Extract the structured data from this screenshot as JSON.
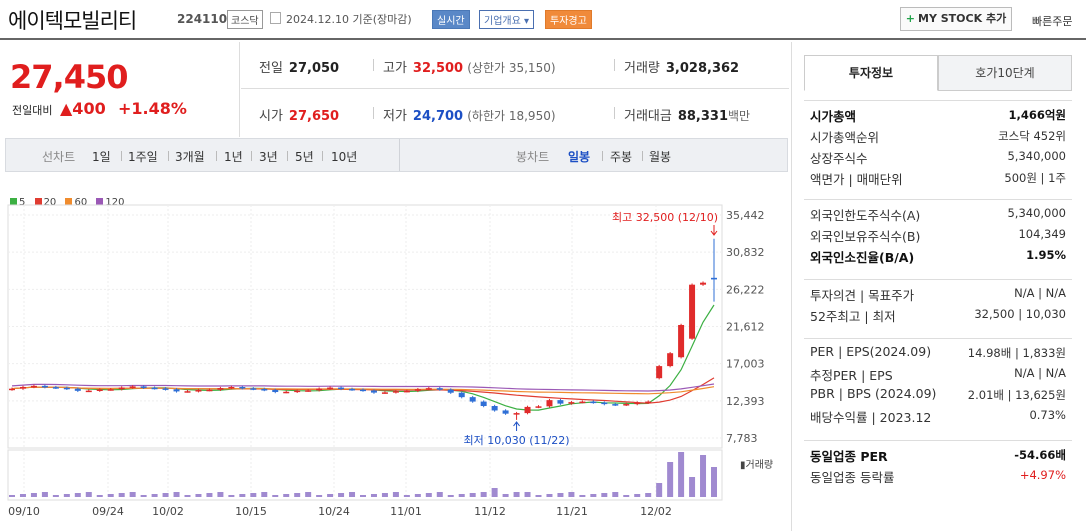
{
  "header": {
    "stock_name": "에이텍모빌리티",
    "stock_code": "224110",
    "market": "코스닥",
    "date_basis": "2024.12.10 기준(장마감)",
    "tags": {
      "realtime": "실시간",
      "company": "기업개요 ▾",
      "warning": "투자경고"
    },
    "mystock_label": "MY STOCK 추가",
    "quick_order": "빠른주문"
  },
  "price": {
    "current": "27,450",
    "change_label": "전일대비",
    "change": "▲400",
    "change_pct": "+1.48%"
  },
  "stats": {
    "prev_close": {
      "label": "전일",
      "value": "27,050"
    },
    "high": {
      "label": "고가",
      "value": "32,500",
      "sub": "(상한가 35,150)"
    },
    "volume": {
      "label": "거래량",
      "value": "3,028,362"
    },
    "open": {
      "label": "시가",
      "value": "27,650"
    },
    "low": {
      "label": "저가",
      "value": "24,700",
      "sub": "(하한가 18,950)"
    },
    "amount": {
      "label": "거래대금",
      "value": "88,331",
      "unit": "백만"
    }
  },
  "chart_toolbar": {
    "line_chart": "선차트",
    "periods": [
      "1일",
      "1주일",
      "3개월",
      "1년",
      "3년",
      "5년",
      "10년"
    ],
    "candle_chart": "봉차트",
    "candle_periods": [
      "일봉",
      "주봉",
      "월봉"
    ],
    "active_candle": "일봉"
  },
  "chart_data": {
    "type": "candlestick",
    "legend": [
      {
        "name": "5",
        "color": "#3cb043"
      },
      {
        "name": "20",
        "color": "#e03c31"
      },
      {
        "name": "60",
        "color": "#f08c2e"
      },
      {
        "name": "120",
        "color": "#9b59b6"
      }
    ],
    "y_ticks": [
      "35,442",
      "30,832",
      "26,222",
      "21,612",
      "17,003",
      "12,393",
      "7,783"
    ],
    "ylim": [
      7783,
      35442
    ],
    "x_ticks": [
      "09/10",
      "09/24",
      "10/02",
      "10/15",
      "10/24",
      "11/01",
      "11/12",
      "11/21",
      "12/02"
    ],
    "annotations": {
      "high": "최고 32,500 (12/10)",
      "low": "최저 10,030 (11/22)"
    },
    "volume_label": "거래량",
    "colors": {
      "up": "#e02b2b",
      "down": "#2f6fd6",
      "volume": "#a08ad0"
    }
  },
  "side": {
    "tabs": [
      "투자정보",
      "호가10단계"
    ],
    "group1": [
      {
        "k": "시가총액",
        "v": "1,466억원",
        "bold": true
      },
      {
        "k": "시가총액순위",
        "v": "코스닥 452위"
      },
      {
        "k": "상장주식수",
        "v": "5,340,000"
      },
      {
        "k": "액면가 | 매매단위",
        "v": "500원 | 1주"
      }
    ],
    "group2": [
      {
        "k": "외국인한도주식수(A)",
        "v": "5,340,000"
      },
      {
        "k": "외국인보유주식수(B)",
        "v": "104,349"
      },
      {
        "k": "외국인소진율(B/A)",
        "v": "1.95%",
        "bold": true
      }
    ],
    "group3": [
      {
        "k": "투자의견 | 목표주가",
        "v": "N/A | N/A"
      },
      {
        "k": "52주최고 | 최저",
        "v": "32,500 | 10,030"
      }
    ],
    "group4": [
      {
        "k": "PER | EPS(2024.09)",
        "v": "14.98배 | 1,833원"
      },
      {
        "k": "추정PER | EPS",
        "v": "N/A | N/A"
      },
      {
        "k": "PBR | BPS (2024.09)",
        "v": "2.01배 | 13,625원"
      },
      {
        "k": "배당수익률 | 2023.12",
        "v": "0.73%"
      }
    ],
    "group5": [
      {
        "k": "동일업종 PER",
        "v": "-54.66배",
        "bold": true
      },
      {
        "k": "동일업종 등락률",
        "v": "+4.97%",
        "red": true
      }
    ]
  }
}
